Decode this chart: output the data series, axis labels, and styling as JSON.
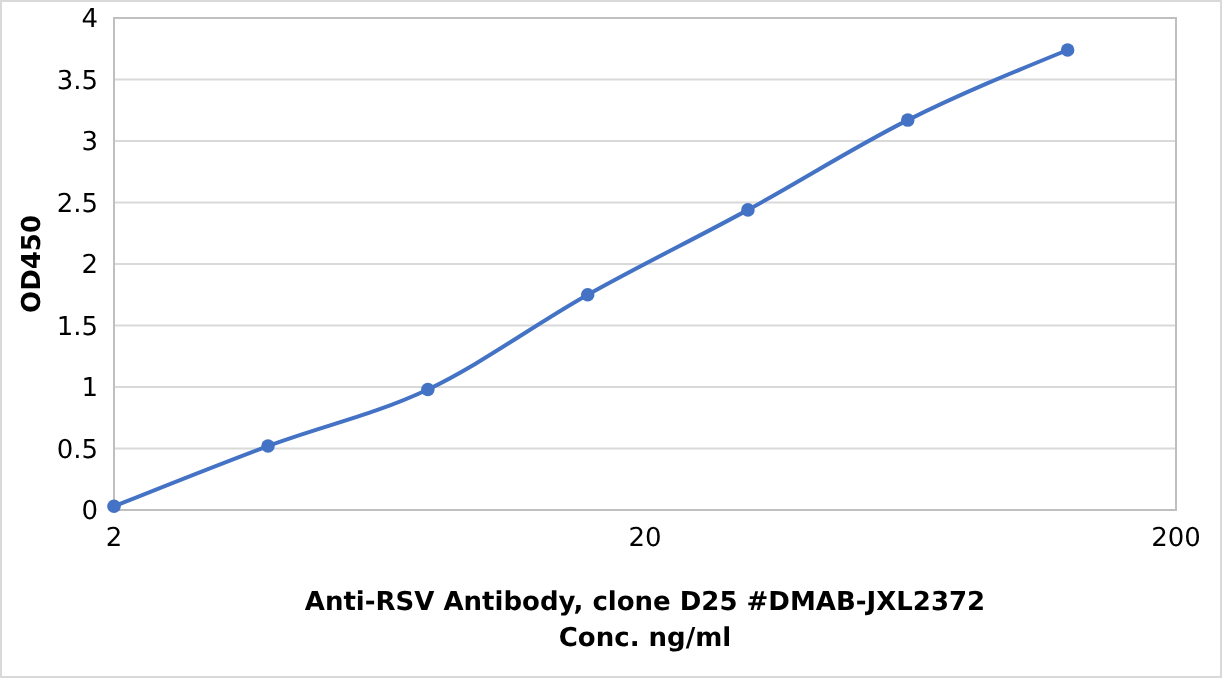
{
  "chart_data": {
    "type": "line",
    "xlabel": "Anti-RSV Antibody, clone D25 #DMAB-JXL2372\nConc. ng/ml",
    "ylabel": "OD450",
    "log": "x",
    "grid": "y",
    "marker": "circle",
    "line_style": "solid",
    "x": [
      2,
      3.9,
      7.8,
      15.6,
      31.25,
      62.5,
      125
    ],
    "series": [
      {
        "color": "#4472c4",
        "values": [
          0.03,
          0.52,
          0.98,
          1.75,
          2.44,
          3.17,
          3.74
        ]
      }
    ],
    "xlim": [
      2,
      200
    ],
    "xticks": [
      2,
      20,
      200
    ],
    "ylim": [
      0,
      4
    ],
    "yticks": [
      0,
      0.5,
      1,
      1.5,
      2,
      2.5,
      3,
      3.5,
      4
    ]
  }
}
